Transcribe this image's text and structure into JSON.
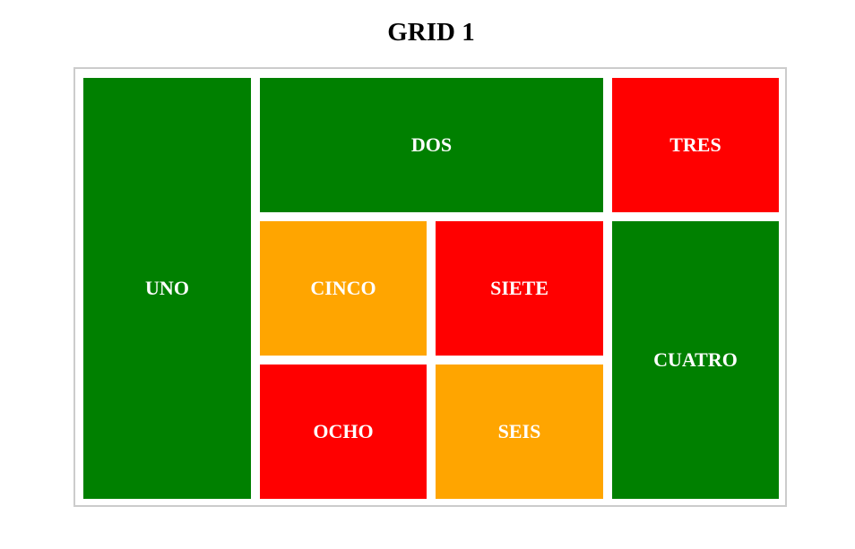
{
  "page": {
    "title": "GRID 1"
  },
  "colors": {
    "green": "#008000",
    "red": "#ff0000",
    "orange": "#ffa500",
    "text": "#ffffff",
    "frame_border": "#cccccc"
  },
  "cells": {
    "uno": {
      "label": "UNO",
      "color": "#008000"
    },
    "dos": {
      "label": "DOS",
      "color": "#008000"
    },
    "tres": {
      "label": "TRES",
      "color": "#ff0000"
    },
    "cinco": {
      "label": "CINCO",
      "color": "#ffa500"
    },
    "siete": {
      "label": "SIETE",
      "color": "#ff0000"
    },
    "cuatro": {
      "label": "CUATRO",
      "color": "#008000"
    },
    "ocho": {
      "label": "OCHO",
      "color": "#ff0000"
    },
    "seis": {
      "label": "SEIS",
      "color": "#ffa500"
    }
  }
}
